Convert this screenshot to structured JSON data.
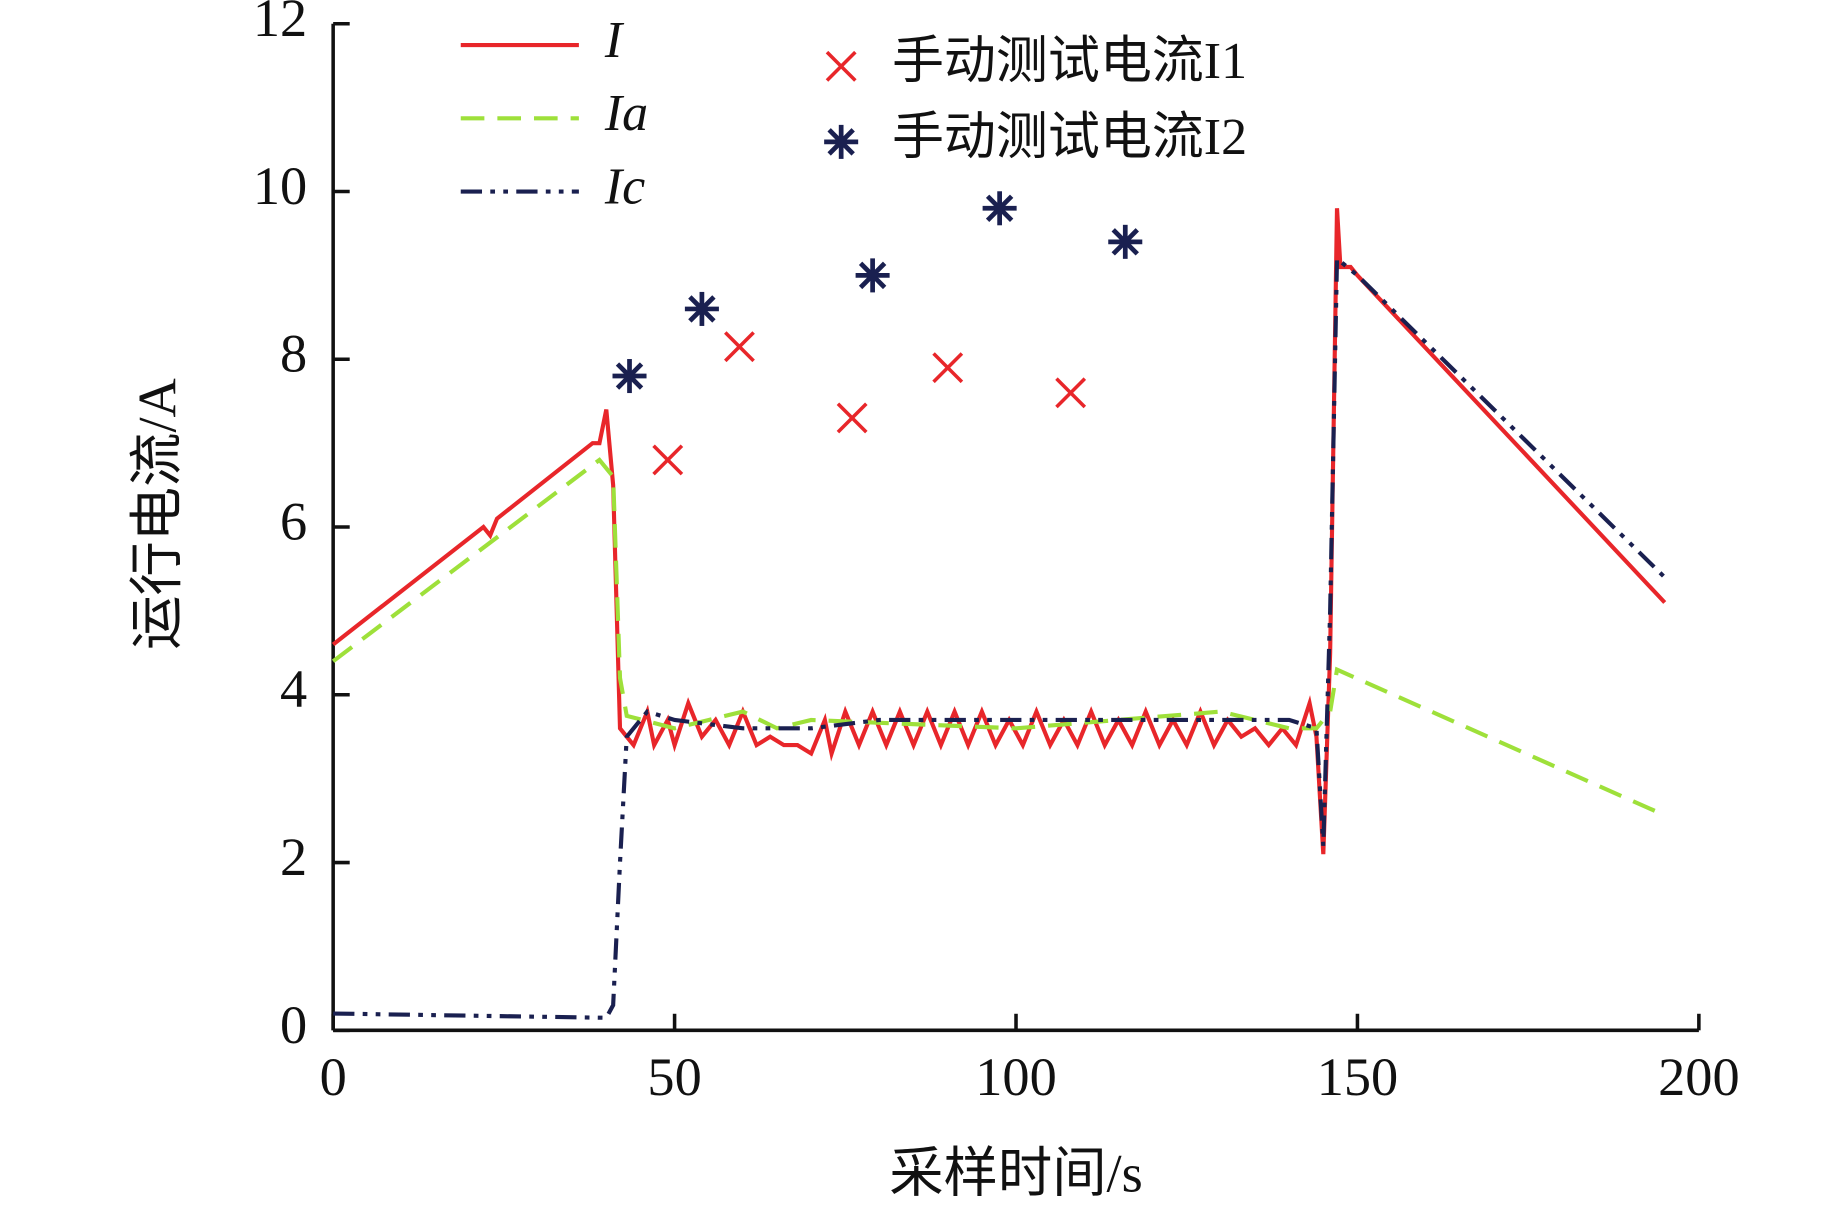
{
  "chart_data": {
    "type": "line",
    "x_label": "采样时间/s",
    "y_label": "运行电流/A",
    "xlim": [
      0,
      200
    ],
    "xticks": [
      0,
      50,
      100,
      150,
      200
    ],
    "ylim": [
      0,
      12
    ],
    "yticks": [
      0,
      2,
      4,
      6,
      8,
      10,
      12
    ],
    "series": [
      {
        "name": "I",
        "color": "#e8262a",
        "style": "solid",
        "x": [
          0,
          22,
          23,
          24,
          38,
          39,
          40,
          41,
          42,
          43,
          44,
          46,
          47,
          49,
          50,
          52,
          54,
          56,
          58,
          60,
          62,
          64,
          66,
          68,
          70,
          72,
          73,
          75,
          77,
          79,
          81,
          83,
          85,
          87,
          89,
          91,
          93,
          95,
          97,
          99,
          101,
          103,
          105,
          107,
          109,
          111,
          113,
          115,
          117,
          119,
          121,
          123,
          125,
          127,
          129,
          131,
          133,
          135,
          137,
          139,
          141,
          143,
          144,
          145,
          146,
          147,
          147.5,
          149,
          150,
          195
        ],
        "values": [
          4.6,
          6.0,
          5.9,
          6.1,
          7.0,
          7.0,
          7.4,
          6.5,
          3.6,
          3.5,
          3.4,
          3.8,
          3.4,
          3.7,
          3.4,
          3.9,
          3.5,
          3.7,
          3.4,
          3.8,
          3.4,
          3.5,
          3.4,
          3.4,
          3.3,
          3.7,
          3.3,
          3.8,
          3.4,
          3.8,
          3.4,
          3.8,
          3.4,
          3.8,
          3.4,
          3.8,
          3.4,
          3.8,
          3.4,
          3.7,
          3.4,
          3.8,
          3.4,
          3.7,
          3.4,
          3.8,
          3.4,
          3.7,
          3.4,
          3.8,
          3.4,
          3.7,
          3.4,
          3.8,
          3.4,
          3.7,
          3.5,
          3.6,
          3.4,
          3.6,
          3.4,
          3.9,
          3.5,
          2.1,
          4.5,
          9.8,
          9.1,
          9.1,
          9.0,
          5.1
        ]
      },
      {
        "name": "Ia",
        "color": "#9ee03a",
        "style": "dashed",
        "x": [
          0,
          39,
          41,
          42,
          43,
          50,
          55,
          60,
          65,
          70,
          100,
          130,
          140,
          144,
          146,
          147,
          194
        ],
        "values": [
          4.4,
          6.8,
          6.6,
          4.2,
          3.75,
          3.6,
          3.7,
          3.8,
          3.6,
          3.7,
          3.6,
          3.8,
          3.6,
          3.6,
          3.8,
          4.3,
          2.6
        ]
      },
      {
        "name": "Ic",
        "color": "#1a2050",
        "style": "dashdotdot",
        "x": [
          0,
          40,
          41,
          42,
          43,
          46,
          50,
          60,
          70,
          80,
          100,
          140,
          144,
          145,
          146,
          147,
          150,
          195
        ],
        "values": [
          0.2,
          0.15,
          0.3,
          2.0,
          3.5,
          3.8,
          3.7,
          3.6,
          3.6,
          3.7,
          3.7,
          3.7,
          3.6,
          2.2,
          5.0,
          9.2,
          9.0,
          5.4
        ]
      }
    ],
    "scatter": [
      {
        "name": "手动测试电流I1",
        "color": "#e8262a",
        "marker": "x",
        "x": [
          49,
          59.5,
          76,
          90,
          108
        ],
        "values": [
          6.8,
          8.15,
          7.3,
          7.9,
          7.6
        ]
      },
      {
        "name": "手动测试电流I2",
        "color": "#1a2050",
        "marker": "star",
        "x": [
          43.4,
          54,
          79,
          97.6,
          116
        ],
        "values": [
          7.8,
          8.6,
          9.0,
          9.8,
          9.4
        ]
      }
    ]
  }
}
